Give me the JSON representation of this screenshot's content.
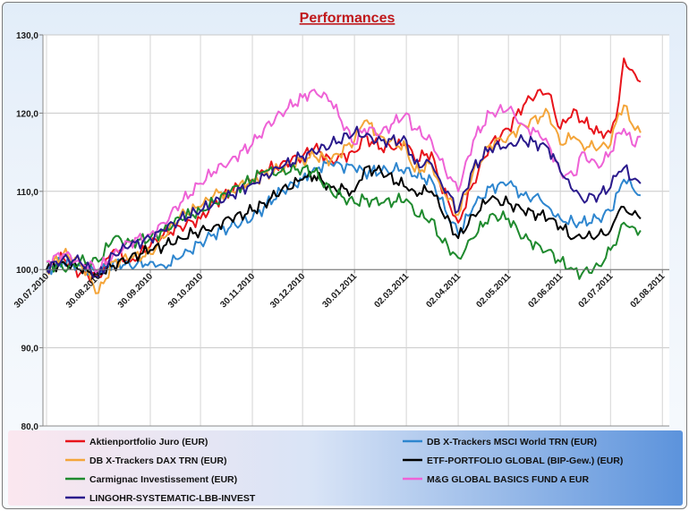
{
  "chart_data": {
    "type": "line",
    "title": "Performances",
    "xlabel": "",
    "ylabel": "",
    "ylim": [
      80,
      130
    ],
    "yticks": [
      "80,0",
      "90,0",
      "100,0",
      "110,0",
      "120,0",
      "130,0"
    ],
    "ytick_values": [
      80,
      90,
      100,
      110,
      120,
      130
    ],
    "xticks": [
      "30.07.2010",
      "30.08.2010",
      "30.09.2010",
      "30.10.2010",
      "30.11.2010",
      "30.12.2010",
      "30.01.2011",
      "02.03.2011",
      "02.04.2011",
      "02.05.2011",
      "02.06.2011",
      "02.07.2011",
      "02.08.2011"
    ],
    "xtick_days": [
      0,
      31,
      62,
      92,
      123,
      153,
      184,
      215,
      246,
      276,
      307,
      337,
      368
    ],
    "legend_position": "bottom",
    "series": [
      {
        "name": "Aktienportfolio Juro (EUR)",
        "color": "#e8141b",
        "days": [
          0,
          10,
          20,
          31,
          40,
          50,
          62,
          70,
          80,
          92,
          100,
          110,
          123,
          130,
          140,
          153,
          160,
          170,
          184,
          190,
          200,
          215,
          220,
          230,
          235,
          246,
          255,
          265,
          276,
          285,
          295,
          300,
          307,
          315,
          320,
          330,
          337,
          342,
          345,
          350,
          355
        ],
        "values": [
          100,
          101.5,
          99.5,
          99,
          102.5,
          101,
          103,
          104.5,
          105.5,
          106.5,
          108.5,
          110,
          111.5,
          112.5,
          113.5,
          114.5,
          115.5,
          114,
          115,
          117,
          115.5,
          116,
          114,
          115,
          111,
          106,
          111,
          116,
          118,
          121,
          123,
          122.5,
          118,
          120.5,
          119,
          117.5,
          117.5,
          121.5,
          127,
          125.5,
          124
        ]
      },
      {
        "name": "DB X-Trackers MSCI World TRN (EUR)",
        "color": "#2e86cf",
        "days": [
          0,
          10,
          20,
          31,
          40,
          50,
          62,
          70,
          80,
          92,
          100,
          110,
          123,
          130,
          140,
          153,
          160,
          170,
          184,
          190,
          200,
          215,
          220,
          230,
          235,
          246,
          255,
          265,
          276,
          285,
          295,
          300,
          307,
          315,
          320,
          330,
          337,
          342,
          345,
          350,
          355
        ],
        "values": [
          100,
          101,
          100.5,
          99.5,
          101,
          100.5,
          101,
          100.5,
          101.5,
          103.5,
          104.5,
          105.5,
          106.5,
          108,
          110,
          111.5,
          113,
          113.5,
          113,
          112.5,
          112.5,
          113,
          112,
          111.5,
          109,
          104.5,
          108,
          110.5,
          111,
          109.5,
          109,
          108,
          106.5,
          106,
          106,
          106.5,
          107.5,
          110,
          111.5,
          110.5,
          109.5
        ]
      },
      {
        "name": "DB X-Trackers DAX TRN (EUR)",
        "color": "#f4a53a",
        "days": [
          0,
          10,
          20,
          31,
          40,
          50,
          62,
          70,
          80,
          92,
          100,
          110,
          123,
          130,
          140,
          153,
          160,
          170,
          184,
          190,
          200,
          215,
          220,
          230,
          235,
          246,
          255,
          265,
          276,
          285,
          295,
          300,
          307,
          315,
          320,
          330,
          337,
          342,
          345,
          350,
          355
        ],
        "values": [
          100,
          102,
          101,
          97,
          101,
          101.5,
          102,
          104,
          107,
          108,
          109.5,
          110,
          111.5,
          112,
          113,
          114,
          114.5,
          114,
          116.5,
          119,
          117,
          115.5,
          112.5,
          113.5,
          111,
          107,
          112.5,
          116,
          117,
          118.5,
          119.5,
          120,
          116,
          117,
          116,
          115.5,
          116,
          120,
          121,
          118.5,
          117.5
        ]
      },
      {
        "name": "ETF-PORTFOLIO GLOBAL (BIP-Gew.) (EUR)",
        "color": "#000000",
        "days": [
          0,
          10,
          20,
          31,
          40,
          50,
          62,
          70,
          80,
          92,
          100,
          110,
          123,
          130,
          140,
          153,
          160,
          170,
          184,
          190,
          200,
          215,
          220,
          230,
          235,
          246,
          255,
          265,
          276,
          285,
          295,
          300,
          307,
          315,
          320,
          330,
          337,
          342,
          345,
          350,
          355
        ],
        "values": [
          100,
          101,
          100,
          99.5,
          100.5,
          101.5,
          102.5,
          103,
          104,
          105,
          105.5,
          106.5,
          107.5,
          108.5,
          110,
          111.5,
          112,
          110.5,
          110,
          113,
          112.5,
          110.5,
          110,
          110,
          108,
          104,
          107,
          109,
          108.5,
          107.5,
          107,
          106.5,
          105.5,
          104,
          104,
          104.5,
          105,
          107.5,
          108,
          107,
          106.5
        ]
      },
      {
        "name": "Carmignac Investissement (EUR)",
        "color": "#1f8a2e",
        "days": [
          0,
          10,
          20,
          31,
          40,
          50,
          62,
          70,
          80,
          92,
          100,
          110,
          123,
          130,
          140,
          153,
          160,
          170,
          184,
          190,
          200,
          215,
          220,
          230,
          235,
          246,
          255,
          265,
          276,
          285,
          295,
          300,
          307,
          315,
          320,
          330,
          337,
          342,
          345,
          350,
          355
        ],
        "values": [
          101,
          100,
          101,
          101,
          104,
          103.5,
          104,
          105,
          106.5,
          107.5,
          108.5,
          110,
          111.5,
          112.5,
          112.5,
          113,
          112.5,
          110,
          108.5,
          109,
          108.5,
          109,
          107,
          106.5,
          104,
          101.5,
          104,
          107,
          106.5,
          104,
          103,
          102.5,
          101,
          100,
          99.5,
          100.5,
          102.5,
          104.5,
          106,
          105.5,
          105
        ]
      },
      {
        "name": "M&G GLOBAL BASICS FUND A EUR",
        "color": "#ee62d6",
        "days": [
          0,
          10,
          20,
          31,
          40,
          50,
          62,
          70,
          80,
          92,
          100,
          110,
          123,
          130,
          140,
          153,
          160,
          170,
          184,
          190,
          200,
          215,
          220,
          230,
          235,
          246,
          255,
          265,
          276,
          285,
          295,
          300,
          307,
          315,
          320,
          330,
          337,
          342,
          345,
          350,
          355
        ],
        "values": [
          101,
          102,
          101,
          100,
          102,
          103.5,
          104.5,
          106,
          108.5,
          111,
          112.5,
          114,
          116,
          118,
          120,
          122,
          123,
          121.5,
          116,
          118,
          117.5,
          120,
          118,
          116.5,
          114,
          110,
          116.5,
          120,
          120.5,
          118.5,
          117,
          116,
          112.5,
          112,
          115,
          113,
          115,
          117.5,
          118,
          116,
          117
        ]
      },
      {
        "name": "LINGOHR-SYSTEMATIC-LBB-INVEST",
        "color": "#2a1a8c",
        "days": [
          0,
          10,
          20,
          31,
          40,
          50,
          62,
          70,
          80,
          92,
          100,
          110,
          123,
          130,
          140,
          153,
          160,
          170,
          184,
          190,
          200,
          215,
          220,
          230,
          235,
          246,
          255,
          265,
          276,
          285,
          295,
          300,
          307,
          315,
          320,
          330,
          337,
          342,
          345,
          350,
          355
        ],
        "values": [
          100,
          101.5,
          101,
          99,
          102,
          103,
          104,
          105,
          106.5,
          107.5,
          108.5,
          109.5,
          111,
          112,
          113,
          114.5,
          115,
          116,
          117.5,
          117,
          116.5,
          116.5,
          113.5,
          113.5,
          111.5,
          107.5,
          113,
          115.5,
          116,
          116.5,
          116,
          115.5,
          112.5,
          110,
          109,
          109.5,
          110.5,
          112.5,
          113,
          111.5,
          111
        ]
      }
    ]
  }
}
